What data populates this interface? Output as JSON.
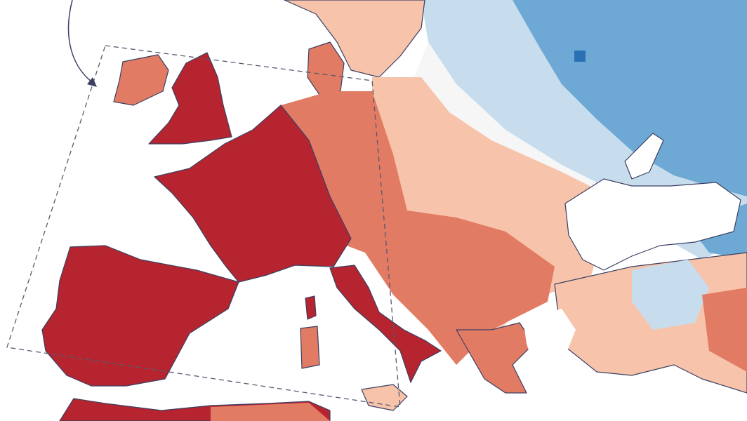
{
  "map": {
    "palette": {
      "dark_red": "#b5242f",
      "medium_red": "#e27b63",
      "light_salmon": "#f7c3aa",
      "neutral": "#f6f6f6",
      "light_blue": "#c7ddee",
      "medium_blue": "#6da9d4",
      "dark_blue": "#2a70b5",
      "coastline": "#3b4063",
      "sea": "#ffffff"
    },
    "highlight_region": {
      "style": "dashed-outline",
      "pointer": "curved-arrow"
    }
  }
}
